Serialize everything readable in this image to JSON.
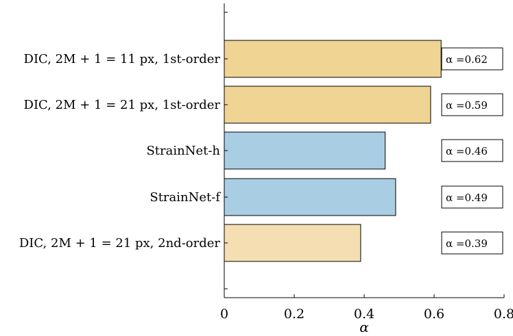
{
  "chart_data": {
    "type": "bar",
    "orientation": "horizontal",
    "categories": [
      "DIC, 2M + 1 = 11 px, 1st-order",
      "DIC, 2M + 1 = 21 px, 1st-order",
      "StrainNet-h",
      "StrainNet-f",
      "DIC, 2M + 1 = 21 px, 2nd-order"
    ],
    "values": [
      0.62,
      0.59,
      0.46,
      0.49,
      0.39
    ],
    "value_labels": [
      "α =0.62",
      "α =0.59",
      "α =0.46",
      "α =0.49",
      "α =0.39"
    ],
    "bar_colors": [
      "#EFD493",
      "#EFD493",
      "#A9CDE3",
      "#A9CDE3",
      "#F5DFB2"
    ],
    "xlabel": "α",
    "xlim": [
      0,
      0.8
    ],
    "xticks": [
      0,
      0.2,
      0.4,
      0.6,
      0.8
    ],
    "xtick_labels": [
      "0",
      "0.2",
      "0.4",
      "0.6",
      "0.8"
    ],
    "grid": false
  }
}
